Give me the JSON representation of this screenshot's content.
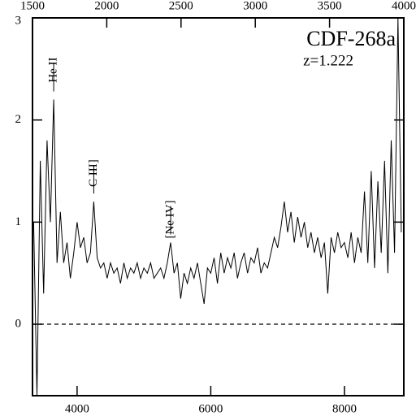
{
  "chart_data": {
    "type": "line",
    "title": "CDF-268a",
    "subtitle": "z=1.222",
    "xlim": [
      3333,
      8888
    ],
    "xticks": [
      4000,
      6000,
      8000
    ],
    "x2lim": [
      1500,
      4000
    ],
    "x2ticks": [
      1500,
      2000,
      2500,
      3000,
      3500,
      4000
    ],
    "ylim": [
      -0.7,
      3
    ],
    "yticks": [
      0,
      1,
      2,
      3
    ],
    "reference_line": 0,
    "color": "#000000",
    "annotations": [
      {
        "text": "He II",
        "x": 3650
      },
      {
        "text": "C III]",
        "x": 4250
      },
      {
        "text": "[Ne IV]",
        "x": 5400
      }
    ],
    "x": [
      3350,
      3400,
      3450,
      3500,
      3550,
      3600,
      3650,
      3700,
      3750,
      3800,
      3850,
      3900,
      3950,
      4000,
      4050,
      4100,
      4150,
      4200,
      4250,
      4300,
      4350,
      4400,
      4450,
      4500,
      4550,
      4600,
      4650,
      4700,
      4750,
      4800,
      4850,
      4900,
      4950,
      5000,
      5050,
      5100,
      5150,
      5200,
      5250,
      5300,
      5350,
      5400,
      5450,
      5500,
      5550,
      5600,
      5650,
      5700,
      5750,
      5800,
      5850,
      5900,
      5950,
      6000,
      6050,
      6100,
      6150,
      6200,
      6250,
      6300,
      6350,
      6400,
      6450,
      6500,
      6550,
      6600,
      6650,
      6700,
      6750,
      6800,
      6850,
      6900,
      6950,
      7000,
      7050,
      7100,
      7150,
      7200,
      7250,
      7300,
      7350,
      7400,
      7450,
      7500,
      7550,
      7600,
      7650,
      7700,
      7750,
      7800,
      7850,
      7900,
      7950,
      8000,
      8050,
      8100,
      8150,
      8200,
      8250,
      8300,
      8350,
      8400,
      8450,
      8500,
      8550,
      8600,
      8650,
      8700,
      8750,
      8800,
      8850
    ],
    "values": [
      1.0,
      -0.7,
      1.6,
      0.3,
      1.8,
      1.0,
      2.2,
      0.6,
      1.1,
      0.6,
      0.8,
      0.45,
      0.7,
      1.0,
      0.75,
      0.85,
      0.6,
      0.7,
      1.2,
      0.65,
      0.55,
      0.6,
      0.45,
      0.6,
      0.5,
      0.55,
      0.4,
      0.6,
      0.45,
      0.55,
      0.5,
      0.6,
      0.45,
      0.55,
      0.5,
      0.6,
      0.45,
      0.5,
      0.55,
      0.45,
      0.6,
      0.8,
      0.5,
      0.6,
      0.25,
      0.5,
      0.4,
      0.55,
      0.45,
      0.6,
      0.4,
      0.2,
      0.55,
      0.5,
      0.65,
      0.4,
      0.7,
      0.5,
      0.65,
      0.55,
      0.7,
      0.45,
      0.6,
      0.7,
      0.5,
      0.65,
      0.6,
      0.75,
      0.5,
      0.6,
      0.55,
      0.7,
      0.85,
      0.75,
      0.95,
      1.2,
      0.9,
      1.1,
      0.8,
      1.05,
      0.85,
      1.0,
      0.75,
      0.9,
      0.7,
      0.85,
      0.65,
      0.8,
      0.3,
      0.85,
      0.7,
      0.9,
      0.75,
      0.8,
      0.65,
      0.9,
      0.6,
      0.85,
      0.7,
      1.3,
      0.6,
      1.5,
      0.55,
      1.4,
      0.7,
      1.6,
      0.5,
      1.8,
      0.7,
      3.0,
      0.9
    ]
  }
}
